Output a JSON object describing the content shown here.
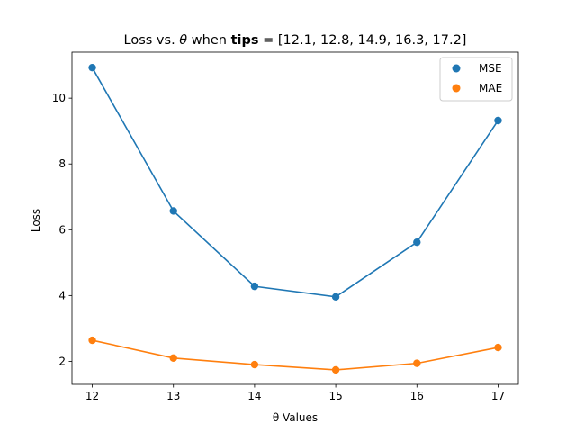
{
  "chart_data": {
    "type": "line",
    "title": "Loss vs. θ when tips = [12.1, 12.8, 14.9, 16.3, 17.2]",
    "title_prefix": "Loss vs. ",
    "title_theta": "θ",
    "title_when": " when ",
    "title_bold": "tips",
    "title_suffix": " = [12.1, 12.8, 14.9, 16.3, 17.2]",
    "xlabel": "θ Values",
    "ylabel": "Loss",
    "x": [
      12,
      13,
      14,
      15,
      16,
      17
    ],
    "xlim": [
      11.75,
      17.25
    ],
    "ylim": [
      1.3,
      11.4
    ],
    "xticks": [
      12,
      13,
      14,
      15,
      16,
      17
    ],
    "yticks": [
      2,
      4,
      6,
      8,
      10
    ],
    "series": [
      {
        "name": "MSE",
        "color": "#1f77b4",
        "values": [
          10.93,
          6.57,
          4.28,
          3.96,
          5.62,
          9.32
        ]
      },
      {
        "name": "MAE",
        "color": "#ff7f0e",
        "values": [
          2.64,
          2.1,
          1.9,
          1.74,
          1.94,
          2.42
        ]
      }
    ],
    "legend": "top-right",
    "grid": false
  }
}
